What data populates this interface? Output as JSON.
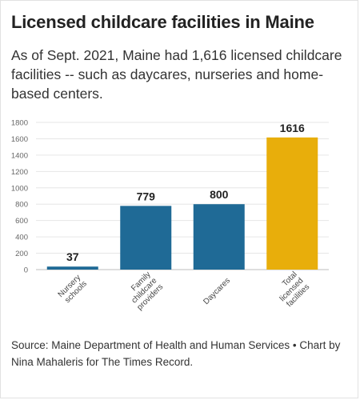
{
  "title": "Licensed childcare facilities in Maine",
  "subtitle": "As of Sept. 2021, Maine had 1,616 licensed childcare facilities -- such as daycares, nurseries and home-based centers.",
  "source": "Source: Maine Department of Health and Human Services • Chart by Nina Mahaleris for The Times Record.",
  "colors": {
    "bar": "#1f6a96",
    "highlight": "#e8ae0b",
    "grid": "#e6e6e6",
    "tick": "#666666"
  },
  "chart_data": {
    "type": "bar",
    "categories": [
      [
        "Nursery",
        "schools"
      ],
      [
        "Family",
        "childcare",
        "providers"
      ],
      [
        "Daycares"
      ],
      [
        "Total",
        "licensed",
        "facilities"
      ]
    ],
    "values": [
      37,
      779,
      800,
      1616
    ],
    "data_labels": [
      "37",
      "779",
      "800",
      "1616"
    ],
    "bar_colors": [
      "#1f6a96",
      "#1f6a96",
      "#1f6a96",
      "#e8ae0b"
    ],
    "ylim": [
      0,
      1800
    ],
    "yticks": [
      0,
      200,
      400,
      600,
      800,
      1000,
      1200,
      1400,
      1600,
      1800
    ],
    "grid": true,
    "title": "",
    "xlabel": "",
    "ylabel": ""
  }
}
